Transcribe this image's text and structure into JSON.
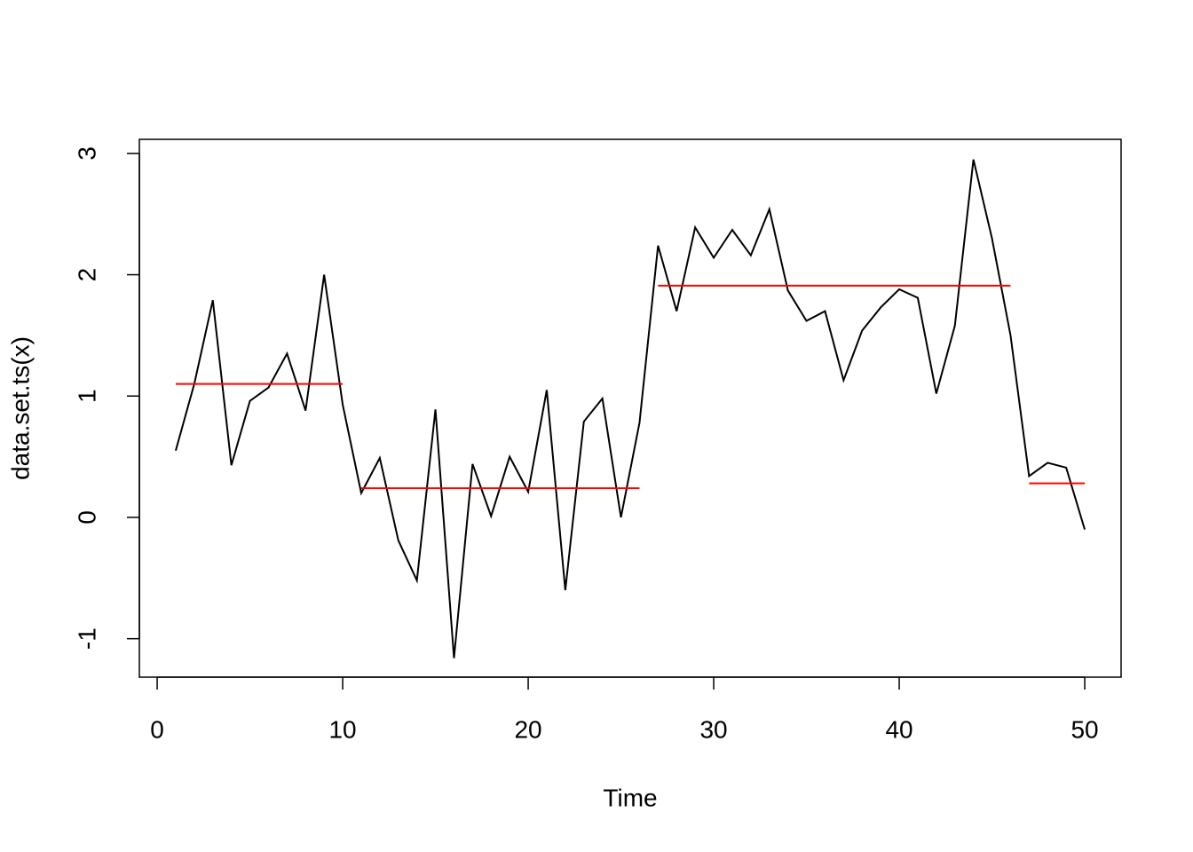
{
  "chart_data": {
    "type": "line",
    "xlabel": "Time",
    "ylabel": "data.set.ts(x)",
    "x": [
      1,
      2,
      3,
      4,
      5,
      6,
      7,
      8,
      9,
      10,
      11,
      12,
      13,
      14,
      15,
      16,
      17,
      18,
      19,
      20,
      21,
      22,
      23,
      24,
      25,
      26,
      27,
      28,
      29,
      30,
      31,
      32,
      33,
      34,
      35,
      36,
      37,
      38,
      39,
      40,
      41,
      42,
      43,
      44,
      45,
      46,
      47,
      48,
      49,
      50
    ],
    "values": [
      0.55,
      1.1,
      1.79,
      0.43,
      0.96,
      1.07,
      1.35,
      0.88,
      2.0,
      0.93,
      0.2,
      0.49,
      -0.19,
      -0.52,
      0.89,
      -1.16,
      0.44,
      0.01,
      0.5,
      0.21,
      1.05,
      -0.6,
      0.79,
      0.98,
      0.0,
      0.78,
      2.24,
      1.7,
      2.39,
      2.14,
      2.37,
      2.16,
      2.54,
      1.87,
      1.62,
      1.7,
      1.13,
      1.54,
      1.73,
      1.88,
      1.81,
      1.02,
      1.58,
      2.95,
      2.3,
      1.5,
      0.34,
      0.45,
      0.41,
      -0.1
    ],
    "color": "#000000",
    "segments": [
      {
        "start": 1,
        "end": 10,
        "value": 1.1
      },
      {
        "start": 11,
        "end": 26,
        "value": 0.24
      },
      {
        "start": 27,
        "end": 46,
        "value": 1.91
      },
      {
        "start": 47,
        "end": 50,
        "value": 0.28
      }
    ],
    "segment_color": "#ff0000",
    "xlim": [
      -0.96,
      51.96
    ],
    "ylim": [
      -1.317,
      3.116
    ],
    "xticks": [
      0,
      10,
      20,
      30,
      40,
      50
    ],
    "yticks": [
      -1,
      0,
      1,
      2,
      3
    ],
    "grid": false
  }
}
